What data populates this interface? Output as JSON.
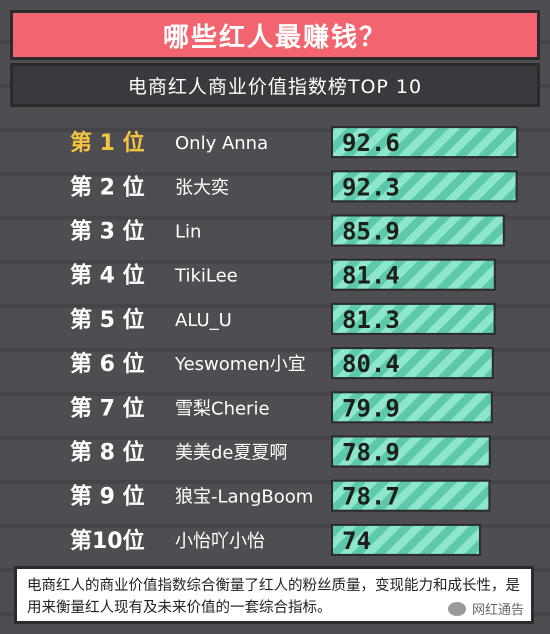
{
  "header": {
    "title": "哪些红人最赚钱？"
  },
  "chart_data": {
    "type": "bar",
    "title": "电商红人商业价值指数榜TOP 10",
    "ranks": [
      "第 1 位",
      "第 2 位",
      "第 3 位",
      "第 4 位",
      "第 5 位",
      "第 6 位",
      "第 7 位",
      "第 8 位",
      "第 9 位",
      "第10位"
    ],
    "categories": [
      "Only Anna",
      "张大奕",
      "Lin",
      "TikiLee",
      "ALU_U",
      "Yeswomen小宜",
      "雪梨Cherie",
      "美美de夏夏啊",
      "狼宝-LangBoom",
      "小怡吖小怡"
    ],
    "values": [
      92.6,
      92.3,
      85.9,
      81.4,
      81.3,
      80.4,
      79.9,
      78.9,
      78.7,
      74
    ],
    "value_labels": [
      "92.6",
      "92.3",
      "85.9",
      "81.4",
      "81.3",
      "80.4",
      "79.9",
      "78.9",
      "78.7",
      "74"
    ],
    "xlim": [
      0,
      100
    ],
    "highlight_index": 0
  },
  "footer": {
    "note": "电商红人的商业价值指数综合衡量了红人的粉丝质量，变现能力和成长性，是用来衡量红人现有及未来价值的一套综合指标。"
  },
  "watermark": {
    "text": "网红通告"
  },
  "colors": {
    "title_bg": "#f2646f",
    "bar_primary": "#8ee6cc",
    "bar_stripe": "#5cc9aa",
    "rank_highlight": "#f5c542",
    "rank_default": "#ffffff"
  }
}
